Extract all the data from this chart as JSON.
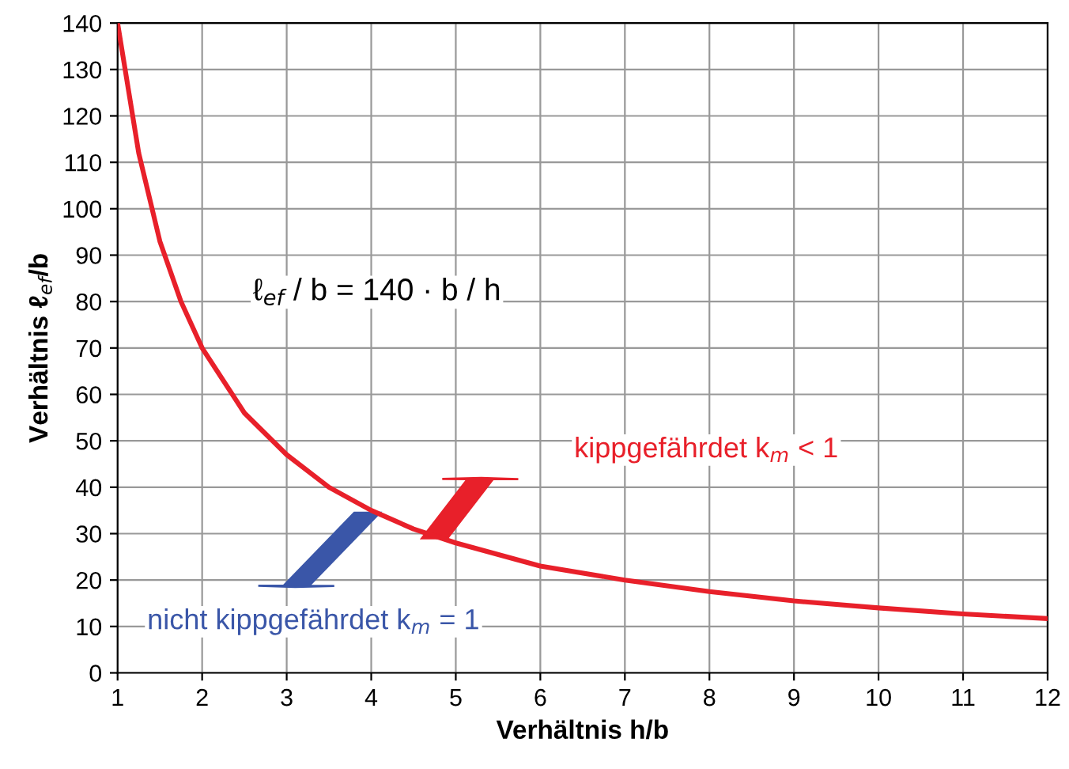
{
  "chart_data": {
    "type": "line",
    "xlabel": "Verhältnis h/b",
    "ylabel": "Verhältnis ℓ$_{ef}$/b",
    "x": [
      1,
      1.25,
      1.5,
      1.75,
      2,
      2.5,
      3,
      3.5,
      4,
      4.5,
      5,
      6,
      7,
      8,
      9,
      10,
      11,
      12
    ],
    "series": [
      {
        "color": "#e8202a",
        "values": [
          140,
          112,
          93,
          80,
          70,
          56,
          47,
          40,
          35,
          31,
          28,
          23,
          20,
          17.5,
          15.5,
          14,
          12.7,
          11.7
        ]
      }
    ],
    "xlim": [
      1,
      12
    ],
    "xticks": [
      1,
      2,
      3,
      4,
      5,
      6,
      7,
      8,
      9,
      10,
      11,
      12
    ],
    "ylim": [
      0,
      140
    ],
    "yticks": [
      0,
      10,
      20,
      30,
      40,
      50,
      60,
      70,
      80,
      90,
      100,
      110,
      120,
      130,
      140
    ],
    "grid": true,
    "marker": "none",
    "line_style": "solid",
    "annotations": [
      "ℓ$_{ef}$ / b = 140 · b / h",
      "kippgefährdet k$_{m}$ < 1",
      "nicht kippgefährdet k$_{m}$ = 1"
    ]
  }
}
